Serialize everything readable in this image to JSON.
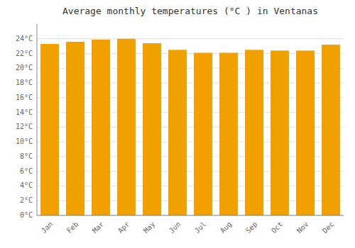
{
  "chart_data": {
    "type": "bar",
    "title": "Average monthly temperatures (°C ) in Ventanas",
    "categories": [
      "Jan",
      "Feb",
      "Mar",
      "Apr",
      "May",
      "Jun",
      "Jul",
      "Aug",
      "Sep",
      "Oct",
      "Nov",
      "Dec"
    ],
    "values": [
      23.3,
      23.6,
      23.9,
      24.0,
      23.4,
      22.5,
      22.1,
      22.1,
      22.5,
      22.4,
      22.4,
      23.2
    ],
    "color": "#F0A000",
    "ylim": [
      0,
      26
    ],
    "yticks": [
      {
        "value": 0,
        "label": "0°C"
      },
      {
        "value": 2,
        "label": "2°C"
      },
      {
        "value": 4,
        "label": "4°C"
      },
      {
        "value": 6,
        "label": "6°C"
      },
      {
        "value": 8,
        "label": "8°C"
      },
      {
        "value": 10,
        "label": "10°C"
      },
      {
        "value": 12,
        "label": "12°C"
      },
      {
        "value": 14,
        "label": "14°C"
      },
      {
        "value": 16,
        "label": "16°C"
      },
      {
        "value": 18,
        "label": "18°C"
      },
      {
        "value": 20,
        "label": "20°C"
      },
      {
        "value": 22,
        "label": "22°C"
      },
      {
        "value": 24,
        "label": "24°C"
      }
    ],
    "grid": true
  }
}
